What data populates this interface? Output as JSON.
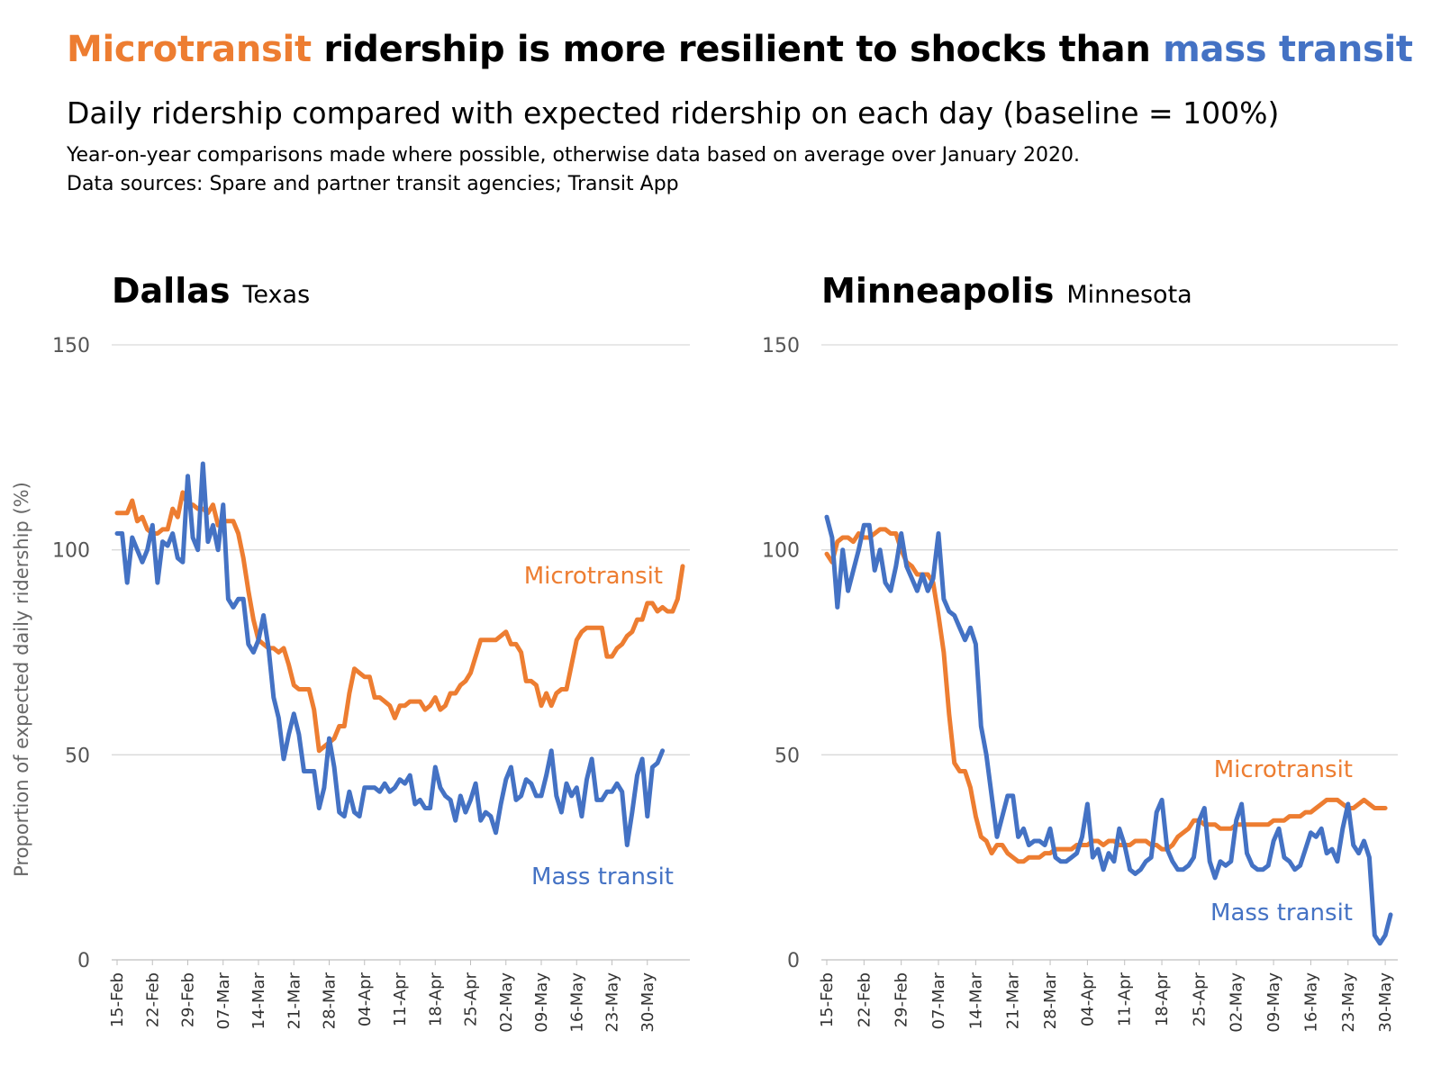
{
  "header": {
    "title_accent1": "Microtransit",
    "title_middle": " ridership is more resilient to shocks than ",
    "title_accent2": "mass transit",
    "subtitle": "Daily ridership compared with expected ridership on each day (baseline = 100%)",
    "note1": "Year-on-year comparisons made where possible, otherwise data based on average over January 2020.",
    "note2": "Data sources: Spare and partner transit agencies; Transit App"
  },
  "colors": {
    "microtransit": "#ED7D31",
    "mass_transit": "#4472C4",
    "grid": "#d9d9d9"
  },
  "chart_data": [
    {
      "type": "line",
      "title": "Dallas",
      "subtitle": "Texas",
      "ylabel": "Proportion of expected daily ridership (%)",
      "ylim": [
        0,
        150
      ],
      "yticks": [
        0,
        50,
        100,
        150
      ],
      "xticks": [
        "15-Feb",
        "22-Feb",
        "29-Feb",
        "07-Mar",
        "14-Mar",
        "21-Mar",
        "28-Mar",
        "04-Apr",
        "11-Apr",
        "18-Apr",
        "25-Apr",
        "02-May",
        "09-May",
        "16-May",
        "23-May",
        "30-May"
      ],
      "x_start": "15-Feb",
      "grid": true,
      "series": [
        {
          "name": "Microtransit",
          "values": [
            109,
            109,
            109,
            112,
            107,
            108,
            105,
            104,
            104,
            105,
            105,
            110,
            108,
            114,
            111,
            111,
            110,
            110,
            109,
            111,
            106,
            107,
            107,
            107,
            104,
            98,
            90,
            83,
            78,
            77,
            76,
            76,
            75,
            76,
            72,
            67,
            66,
            66,
            66,
            61,
            51,
            52,
            53,
            54,
            57,
            57,
            65,
            71,
            70,
            69,
            69,
            64,
            64,
            63,
            62,
            59,
            62,
            62,
            63,
            63,
            63,
            61,
            62,
            64,
            61,
            62,
            65,
            65,
            67,
            68,
            70,
            74,
            78,
            78,
            78,
            78,
            79,
            80,
            77,
            77,
            75,
            68,
            68,
            67,
            62,
            65,
            62,
            65,
            66,
            66,
            72,
            78,
            80,
            81,
            81,
            81,
            81,
            74,
            74,
            76,
            77,
            79,
            80,
            83,
            83,
            87,
            87,
            85,
            86,
            85,
            85,
            88,
            96
          ]
        },
        {
          "name": "Mass transit",
          "values": [
            104,
            104,
            92,
            103,
            100,
            97,
            100,
            106,
            92,
            102,
            101,
            104,
            98,
            97,
            118,
            103,
            100,
            121,
            102,
            106,
            100,
            111,
            88,
            86,
            88,
            88,
            77,
            75,
            78,
            84,
            76,
            64,
            59,
            49,
            55,
            60,
            55,
            46,
            46,
            46,
            37,
            42,
            54,
            47,
            36,
            35,
            41,
            36,
            35,
            42,
            42,
            42,
            41,
            43,
            41,
            42,
            44,
            43,
            45,
            38,
            39,
            37,
            37,
            47,
            42,
            40,
            39,
            34,
            40,
            36,
            39,
            43,
            34,
            36,
            35,
            31,
            38,
            44,
            47,
            39,
            40,
            44,
            43,
            40,
            40,
            45,
            51,
            40,
            36,
            43,
            40,
            42,
            35,
            44,
            49,
            39,
            39,
            41,
            41,
            43,
            41,
            28,
            36,
            45,
            49,
            35,
            47,
            48,
            51
          ]
        }
      ],
      "annotations": [
        "Microtransit",
        "Mass transit"
      ]
    },
    {
      "type": "line",
      "title": "Minneapolis",
      "subtitle": "Minnesota",
      "ylabel": "",
      "ylim": [
        0,
        150
      ],
      "yticks": [
        0,
        50,
        100,
        150
      ],
      "xticks": [
        "15-Feb",
        "22-Feb",
        "29-Feb",
        "07-Mar",
        "14-Mar",
        "21-Mar",
        "28-Mar",
        "04-Apr",
        "11-Apr",
        "18-Apr",
        "25-Apr",
        "02-May",
        "09-May",
        "16-May",
        "23-May",
        "30-May"
      ],
      "x_start": "15-Feb",
      "grid": true,
      "series": [
        {
          "name": "Microtransit",
          "values": [
            99,
            97,
            102,
            103,
            103,
            102,
            104,
            103,
            103,
            104,
            105,
            105,
            104,
            104,
            100,
            97,
            96,
            94,
            94,
            94,
            92,
            84,
            75,
            60,
            48,
            46,
            46,
            42,
            35,
            30,
            29,
            26,
            28,
            28,
            26,
            25,
            24,
            24,
            25,
            25,
            25,
            26,
            26,
            27,
            27,
            27,
            27,
            28,
            28,
            28,
            29,
            29,
            28,
            29,
            29,
            28,
            28,
            28,
            29,
            29,
            29,
            28,
            28,
            27,
            27,
            28,
            30,
            31,
            32,
            34,
            34,
            33,
            33,
            33,
            32,
            32,
            32,
            33,
            33,
            33,
            33,
            33,
            33,
            33,
            34,
            34,
            34,
            35,
            35,
            35,
            36,
            36,
            37,
            38,
            39,
            39,
            39,
            38,
            37,
            37,
            38,
            39,
            38,
            37,
            37,
            37
          ]
        },
        {
          "name": "Mass transit",
          "values": [
            108,
            103,
            86,
            100,
            90,
            95,
            100,
            106,
            106,
            95,
            100,
            92,
            90,
            96,
            104,
            96,
            93,
            90,
            94,
            90,
            93,
            104,
            88,
            85,
            84,
            81,
            78,
            81,
            77,
            57,
            50,
            40,
            30,
            35,
            40,
            40,
            30,
            32,
            28,
            29,
            29,
            28,
            32,
            25,
            24,
            24,
            25,
            26,
            30,
            38,
            25,
            27,
            22,
            26,
            24,
            32,
            28,
            22,
            21,
            22,
            24,
            25,
            36,
            39,
            27,
            24,
            22,
            22,
            23,
            25,
            34,
            37,
            24,
            20,
            24,
            23,
            24,
            34,
            38,
            26,
            23,
            22,
            22,
            23,
            29,
            32,
            25,
            24,
            22,
            23,
            27,
            31,
            30,
            32,
            26,
            27,
            24,
            32,
            38,
            28,
            26,
            29,
            25,
            6,
            4,
            6,
            11
          ]
        }
      ],
      "annotations": [
        "Microtransit",
        "Mass transit"
      ]
    }
  ]
}
